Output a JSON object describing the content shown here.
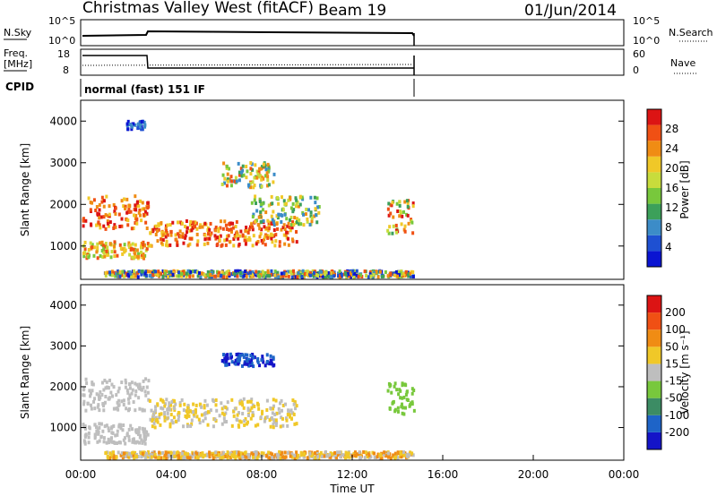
{
  "header": {
    "station": "Christmas Valley West (fitACF)",
    "beam": "Beam 19",
    "date": "01/Jun/2014"
  },
  "strip_panels": {
    "nsky_label": "N.Sky",
    "nsky_ticks": [
      "10^5",
      "10^0"
    ],
    "nsearch_label": "N.Search",
    "nsearch_ticks": [
      "10^5",
      "10^0"
    ],
    "freq_label_1": "Freq.",
    "freq_label_2": "[MHz]",
    "freq_ticks": [
      "18",
      "8"
    ],
    "nave_label": "Nave",
    "nave_ticks": [
      "60",
      "0"
    ],
    "cpid_label": "CPID",
    "cpid_text": "normal (fast) 151 IF"
  },
  "chart_data": [
    {
      "type": "heatmap",
      "name": "power-panel",
      "ylabel": "Slant Range [km]",
      "xlabel": "Time UT",
      "y_ticks": [
        1000,
        2000,
        3000,
        4000
      ],
      "ylim": [
        200,
        4500
      ],
      "xlim": [
        0,
        24
      ],
      "colorbar_label": "Power [dB]",
      "colorbar_ticks": [
        "28",
        "24",
        "20",
        "16",
        "12",
        "8",
        "4"
      ],
      "colors": [
        "#0a14d2",
        "#1e50d2",
        "#3c8cc8",
        "#3ca05a",
        "#78c83c",
        "#c8dc3c",
        "#f0c828",
        "#f08c14",
        "#f05014",
        "#dc1414"
      ],
      "data_end_hour": 14.8
    },
    {
      "type": "heatmap",
      "name": "velocity-panel",
      "ylabel": "Slant Range [km]",
      "xlabel": "Time UT",
      "y_ticks": [
        1000,
        2000,
        3000,
        4000
      ],
      "ylim": [
        200,
        4500
      ],
      "xlim": [
        0,
        24
      ],
      "colorbar_label": "Velocity [m s⁻¹]",
      "colorbar_ticks": [
        "200",
        "100",
        "50",
        "15",
        "-15",
        "-50",
        "-100",
        "-200"
      ],
      "colors": [
        "#1414c8",
        "#1e64c8",
        "#3c8c64",
        "#78c83c",
        "#bebebe",
        "#f0c828",
        "#f08c14",
        "#f05014",
        "#dc1414"
      ],
      "data_end_hour": 14.8
    }
  ],
  "time_axis": {
    "ticks": [
      "00:00",
      "04:00",
      "08:00",
      "12:00",
      "16:00",
      "20:00",
      "00:00"
    ],
    "label": "Time UT"
  }
}
